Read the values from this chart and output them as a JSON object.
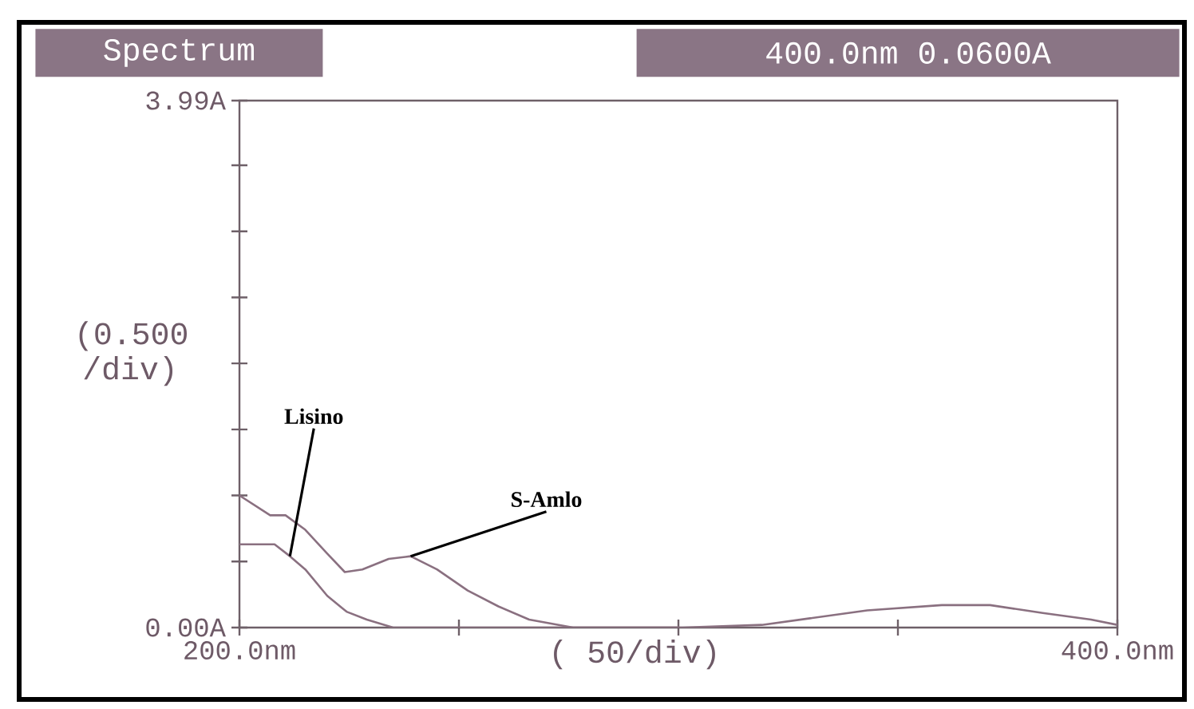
{
  "chart_data": {
    "type": "line",
    "title": "Spectrum",
    "subtitle": "400.0nm  0.0600A",
    "xlabel": "( 50/div)",
    "ylabel": "(0.500 /div)",
    "x": [
      200,
      207,
      210.5,
      215,
      220,
      224,
      228,
      234,
      239,
      245,
      252,
      259,
      266,
      276,
      301,
      319,
      330,
      343,
      360,
      371,
      383,
      394,
      400
    ],
    "series": [
      {
        "color": "#8a7080",
        "values": [
          1.0,
          0.85,
          0.85,
          0.74,
          0.56,
          0.42,
          0.44,
          0.52,
          0.54,
          0.44,
          0.28,
          0.16,
          0.06,
          0.0,
          0.0,
          0.02,
          0.07,
          0.13,
          0.17,
          0.17,
          0.11,
          0.06,
          0.02
        ]
      },
      {
        "color": "#8a7080",
        "x": [
          200,
          208,
          211.5,
          215,
          220,
          224.4,
          229,
          235,
          260,
          300
        ],
        "values": [
          0.63,
          0.63,
          0.54,
          0.44,
          0.24,
          0.12,
          0.06,
          0.0,
          0.0,
          0.0
        ]
      }
    ],
    "xlim": [
      200,
      400
    ],
    "ylim": [
      0,
      3.99
    ],
    "xticks": [
      {
        "value": 200,
        "label": "200.0nm"
      },
      {
        "value": 250,
        "label": null
      },
      {
        "value": 300,
        "label": null
      },
      {
        "value": 350,
        "label": null
      },
      {
        "value": 400,
        "label": "400.0nm"
      }
    ],
    "yticks": [
      {
        "value": 0,
        "label": "0.00A"
      },
      {
        "value": 0.5,
        "label": null
      },
      {
        "value": 1,
        "label": null
      },
      {
        "value": 1.5,
        "label": null
      },
      {
        "value": 2,
        "label": null
      },
      {
        "value": 2.5,
        "label": null
      },
      {
        "value": 3,
        "label": null
      },
      {
        "value": 3.5,
        "label": null
      },
      {
        "value": 3.99,
        "label": "3.99A"
      }
    ],
    "annotations": [
      {
        "text": "Lisino",
        "x": 211.5,
        "y": 0.54
      },
      {
        "text": "S-Amlo",
        "x": 239,
        "y": 0.54
      }
    ],
    "grid": false,
    "marker": "none",
    "line_style": "solid"
  }
}
